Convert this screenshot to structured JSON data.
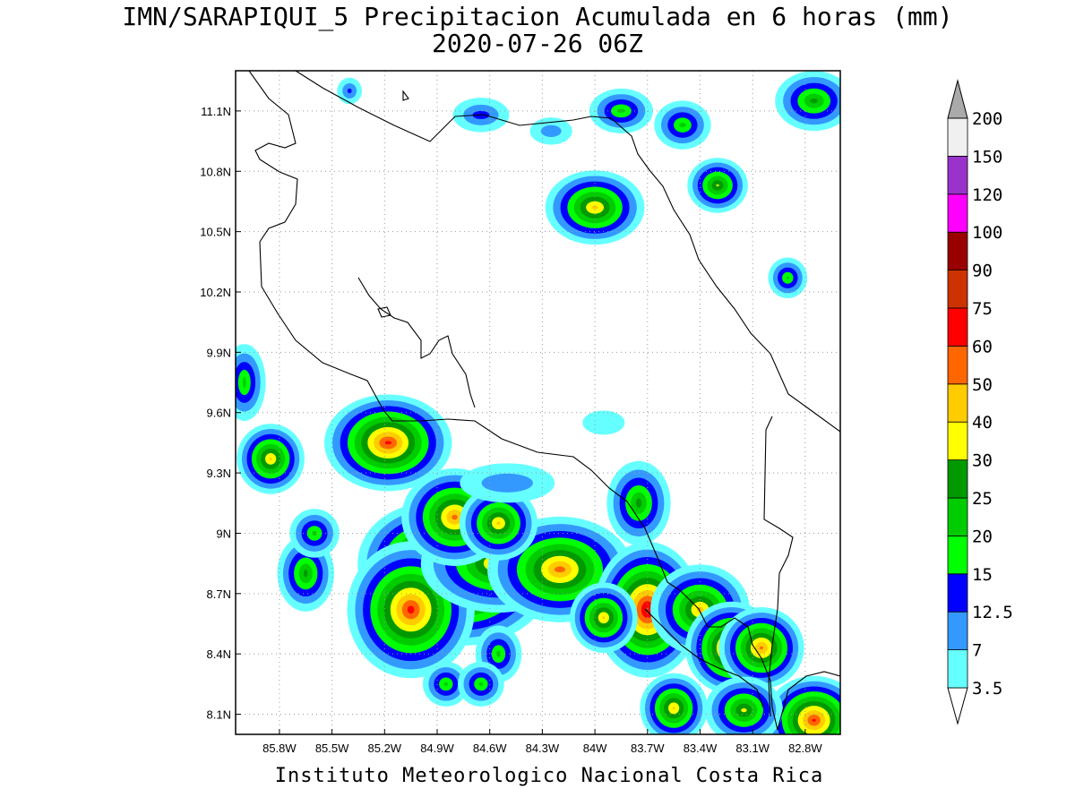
{
  "title": {
    "line1": "IMN/SARAPIQUI_5 Precipitacion Acumulada en 6 horas (mm)",
    "line2": "2020-07-26 06Z"
  },
  "footer": "Instituto Meteorologico Nacional Costa Rica",
  "map": {
    "lon_range": [
      -86.05,
      -82.6
    ],
    "lat_range": [
      8.0,
      11.3
    ],
    "lon_ticks": [
      {
        "v": -85.8,
        "label": "85.8W"
      },
      {
        "v": -85.5,
        "label": "85.5W"
      },
      {
        "v": -85.2,
        "label": "85.2W"
      },
      {
        "v": -84.9,
        "label": "84.9W"
      },
      {
        "v": -84.6,
        "label": "84.6W"
      },
      {
        "v": -84.3,
        "label": "84.3W"
      },
      {
        "v": -84.0,
        "label": "84W"
      },
      {
        "v": -83.7,
        "label": "83.7W"
      },
      {
        "v": -83.4,
        "label": "83.4W"
      },
      {
        "v": -83.1,
        "label": "83.1W"
      },
      {
        "v": -82.8,
        "label": "82.8W"
      }
    ],
    "lat_ticks": [
      {
        "v": 8.1,
        "label": "8.1N"
      },
      {
        "v": 8.4,
        "label": "8.4N"
      },
      {
        "v": 8.7,
        "label": "8.7N"
      },
      {
        "v": 9.0,
        "label": "9N"
      },
      {
        "v": 9.3,
        "label": "9.3N"
      },
      {
        "v": 9.6,
        "label": "9.6N"
      },
      {
        "v": 9.9,
        "label": "9.9N"
      },
      {
        "v": 10.2,
        "label": "10.2N"
      },
      {
        "v": 10.5,
        "label": "10.5N"
      },
      {
        "v": 10.8,
        "label": "10.8N"
      },
      {
        "v": 11.1,
        "label": "11.1N"
      }
    ],
    "grid": "dotted"
  },
  "colorbar": {
    "levels": [
      "3.5",
      "7",
      "12.5",
      "15",
      "20",
      "25",
      "30",
      "40",
      "50",
      "60",
      "75",
      "90",
      "100",
      "120",
      "150",
      "200"
    ],
    "colors": [
      "#ffffff",
      "#66ffff",
      "#3399ff",
      "#0000ff",
      "#00ff00",
      "#00cc00",
      "#009900",
      "#ffff00",
      "#ffcc00",
      "#ff6600",
      "#ff0000",
      "#cc3300",
      "#990000",
      "#ff00ff",
      "#9933cc",
      "#f0f0f0",
      "#aaaaaa"
    ]
  },
  "chart_data": {
    "type": "heatmap",
    "variable": "Precipitacion Acumulada en 6 horas (mm)",
    "units": "mm",
    "valid_time": "2020-07-26 06Z",
    "cells": [
      {
        "lon": -84.75,
        "lat": 8.78,
        "rx": 0.3,
        "ry": 0.16,
        "value": 75
      },
      {
        "lon": -84.95,
        "lat": 8.85,
        "rx": 0.22,
        "ry": 0.14,
        "value": 60
      },
      {
        "lon": -85.05,
        "lat": 8.62,
        "rx": 0.18,
        "ry": 0.18,
        "value": 60
      },
      {
        "lon": -84.55,
        "lat": 8.85,
        "rx": 0.3,
        "ry": 0.12,
        "value": 40
      },
      {
        "lon": -84.2,
        "lat": 8.82,
        "rx": 0.25,
        "ry": 0.12,
        "value": 50
      },
      {
        "lon": -84.8,
        "lat": 9.08,
        "rx": 0.14,
        "ry": 0.1,
        "value": 50
      },
      {
        "lon": -84.55,
        "lat": 9.05,
        "rx": 0.08,
        "ry": 0.06,
        "value": 40
      },
      {
        "lon": -85.18,
        "lat": 9.45,
        "rx": 0.18,
        "ry": 0.08,
        "value": 60
      },
      {
        "lon": -83.7,
        "lat": 8.62,
        "rx": 0.1,
        "ry": 0.16,
        "value": 75
      },
      {
        "lon": -83.4,
        "lat": 8.62,
        "rx": 0.14,
        "ry": 0.1,
        "value": 40
      },
      {
        "lon": -83.22,
        "lat": 8.43,
        "rx": 0.08,
        "ry": 0.07,
        "value": 60
      },
      {
        "lon": -83.05,
        "lat": 8.43,
        "rx": 0.08,
        "ry": 0.06,
        "value": 50
      },
      {
        "lon": -82.75,
        "lat": 8.07,
        "rx": 0.1,
        "ry": 0.06,
        "value": 60
      },
      {
        "lon": -83.75,
        "lat": 9.15,
        "rx": 0.08,
        "ry": 0.12,
        "value": 25
      },
      {
        "lon": -84.0,
        "lat": 10.62,
        "rx": 0.14,
        "ry": 0.06,
        "value": 40
      },
      {
        "lon": -83.85,
        "lat": 11.1,
        "rx": 0.1,
        "ry": 0.04,
        "value": 20
      },
      {
        "lon": -83.5,
        "lat": 11.03,
        "rx": 0.08,
        "ry": 0.05,
        "value": 20
      },
      {
        "lon": -82.75,
        "lat": 11.15,
        "rx": 0.12,
        "ry": 0.06,
        "value": 25
      },
      {
        "lon": -82.9,
        "lat": 10.27,
        "rx": 0.03,
        "ry": 0.03,
        "value": 20
      },
      {
        "lon": -83.3,
        "lat": 10.73,
        "rx": 0.05,
        "ry": 0.03,
        "value": 30
      },
      {
        "lon": -85.65,
        "lat": 8.8,
        "rx": 0.06,
        "ry": 0.1,
        "value": 25
      },
      {
        "lon": -85.85,
        "lat": 9.37,
        "rx": 0.05,
        "ry": 0.05,
        "value": 40
      },
      {
        "lon": -83.55,
        "lat": 8.13,
        "rx": 0.05,
        "ry": 0.05,
        "value": 40
      },
      {
        "lon": -83.15,
        "lat": 8.12,
        "rx": 0.1,
        "ry": 0.06,
        "value": 30
      },
      {
        "lon": -85.6,
        "lat": 9.0,
        "rx": 0.06,
        "ry": 0.05,
        "value": 20
      },
      {
        "lon": -84.55,
        "lat": 8.4,
        "rx": 0.05,
        "ry": 0.07,
        "value": 20
      },
      {
        "lon": -84.85,
        "lat": 8.25,
        "rx": 0.05,
        "ry": 0.04,
        "value": 20
      },
      {
        "lon": -84.65,
        "lat": 8.25,
        "rx": 0.05,
        "ry": 0.04,
        "value": 20
      },
      {
        "lon": -83.95,
        "lat": 8.58,
        "rx": 0.05,
        "ry": 0.05,
        "value": 40
      },
      {
        "lon": -86.0,
        "lat": 9.75,
        "rx": 0.04,
        "ry": 0.12,
        "value": 20
      },
      {
        "lon": -84.65,
        "lat": 11.08,
        "rx": 0.12,
        "ry": 0.05,
        "value": 12.5
      },
      {
        "lon": -84.25,
        "lat": 11.0,
        "rx": 0.1,
        "ry": 0.05,
        "value": 7
      },
      {
        "lon": -85.4,
        "lat": 11.2,
        "rx": 0.03,
        "ry": 0.03,
        "value": 12.5
      },
      {
        "lon": -84.5,
        "lat": 9.25,
        "rx": 0.25,
        "ry": 0.08,
        "value": 7
      },
      {
        "lon": -83.95,
        "lat": 9.55,
        "rx": 0.12,
        "ry": 0.06,
        "value": 3.5
      }
    ]
  }
}
